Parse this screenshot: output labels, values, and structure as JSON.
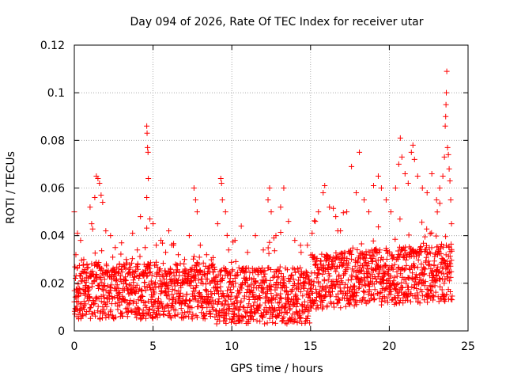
{
  "chart_data": {
    "type": "scatter",
    "title": "Day 094 of 2026, Rate Of TEC Index for receiver utar",
    "xlabel": "GPS time / hours",
    "ylabel": "ROTI / TECUs",
    "xlim": [
      0,
      25
    ],
    "ylim": [
      0,
      0.12
    ],
    "xticks": [
      "0",
      "5",
      "10",
      "15",
      "20",
      "25"
    ],
    "yticks": [
      "0",
      "0.02",
      "0.04",
      "0.06",
      "0.08",
      "0.1",
      "0.12"
    ],
    "grid": true,
    "marker": "+",
    "series_color": "#ff0000",
    "series": [
      {
        "name": "ROTI",
        "points": [
          [
            0.0,
            0.05
          ],
          [
            0.1,
            0.032
          ],
          [
            0.2,
            0.041
          ],
          [
            0.4,
            0.038
          ],
          [
            0.6,
            0.03
          ],
          [
            0.8,
            0.028
          ],
          [
            1.0,
            0.052
          ],
          [
            1.1,
            0.045
          ],
          [
            1.3,
            0.056
          ],
          [
            1.4,
            0.065
          ],
          [
            1.5,
            0.064
          ],
          [
            1.6,
            0.062
          ],
          [
            1.7,
            0.057
          ],
          [
            1.8,
            0.054
          ],
          [
            2.0,
            0.042
          ],
          [
            2.3,
            0.04
          ],
          [
            2.6,
            0.035
          ],
          [
            3.0,
            0.037
          ],
          [
            3.3,
            0.03
          ],
          [
            3.7,
            0.041
          ],
          [
            4.0,
            0.034
          ],
          [
            4.2,
            0.048
          ],
          [
            4.5,
            0.035
          ],
          [
            4.6,
            0.086
          ],
          [
            4.62,
            0.083
          ],
          [
            4.65,
            0.077
          ],
          [
            4.68,
            0.075
          ],
          [
            4.7,
            0.064
          ],
          [
            4.6,
            0.056
          ],
          [
            4.8,
            0.047
          ],
          [
            5.0,
            0.045
          ],
          [
            5.2,
            0.036
          ],
          [
            5.5,
            0.038
          ],
          [
            5.8,
            0.033
          ],
          [
            6.0,
            0.042
          ],
          [
            6.3,
            0.036
          ],
          [
            6.6,
            0.032
          ],
          [
            7.0,
            0.03
          ],
          [
            7.3,
            0.04
          ],
          [
            7.6,
            0.06
          ],
          [
            7.7,
            0.055
          ],
          [
            7.8,
            0.05
          ],
          [
            8.0,
            0.036
          ],
          [
            8.4,
            0.032
          ],
          [
            8.8,
            0.028
          ],
          [
            9.1,
            0.045
          ],
          [
            9.3,
            0.064
          ],
          [
            9.35,
            0.062
          ],
          [
            9.4,
            0.055
          ],
          [
            9.6,
            0.05
          ],
          [
            9.8,
            0.034
          ],
          [
            10.2,
            0.038
          ],
          [
            10.6,
            0.044
          ],
          [
            11.0,
            0.033
          ],
          [
            11.5,
            0.04
          ],
          [
            12.0,
            0.034
          ],
          [
            12.3,
            0.055
          ],
          [
            12.4,
            0.06
          ],
          [
            12.5,
            0.05
          ],
          [
            12.8,
            0.04
          ],
          [
            13.1,
            0.052
          ],
          [
            13.3,
            0.06
          ],
          [
            13.6,
            0.046
          ],
          [
            14.0,
            0.038
          ],
          [
            14.4,
            0.033
          ],
          [
            14.8,
            0.036
          ],
          [
            15.1,
            0.041
          ],
          [
            15.3,
            0.046
          ],
          [
            15.5,
            0.05
          ],
          [
            15.8,
            0.058
          ],
          [
            15.9,
            0.061
          ],
          [
            16.2,
            0.052
          ],
          [
            16.6,
            0.048
          ],
          [
            16.9,
            0.042
          ],
          [
            17.3,
            0.05
          ],
          [
            17.6,
            0.069
          ],
          [
            17.9,
            0.058
          ],
          [
            18.1,
            0.075
          ],
          [
            18.4,
            0.055
          ],
          [
            18.7,
            0.05
          ],
          [
            19.0,
            0.061
          ],
          [
            19.3,
            0.065
          ],
          [
            19.5,
            0.06
          ],
          [
            19.8,
            0.055
          ],
          [
            20.1,
            0.05
          ],
          [
            20.4,
            0.06
          ],
          [
            20.6,
            0.07
          ],
          [
            20.7,
            0.081
          ],
          [
            20.8,
            0.073
          ],
          [
            21.0,
            0.066
          ],
          [
            21.2,
            0.062
          ],
          [
            21.4,
            0.075
          ],
          [
            21.5,
            0.078
          ],
          [
            21.6,
            0.072
          ],
          [
            21.8,
            0.065
          ],
          [
            22.1,
            0.06
          ],
          [
            22.4,
            0.058
          ],
          [
            22.7,
            0.066
          ],
          [
            23.0,
            0.055
          ],
          [
            23.2,
            0.06
          ],
          [
            23.4,
            0.065
          ],
          [
            23.5,
            0.073
          ],
          [
            23.55,
            0.086
          ],
          [
            23.58,
            0.09
          ],
          [
            23.6,
            0.095
          ],
          [
            23.62,
            0.1
          ],
          [
            23.65,
            0.109
          ],
          [
            23.7,
            0.077
          ],
          [
            23.75,
            0.074
          ],
          [
            23.8,
            0.068
          ],
          [
            23.85,
            0.063
          ],
          [
            23.9,
            0.055
          ],
          [
            23.95,
            0.045
          ]
        ]
      }
    ]
  }
}
